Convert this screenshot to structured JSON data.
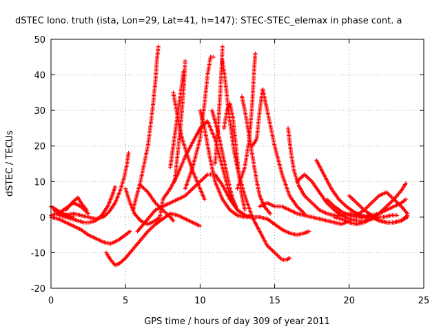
{
  "chart_data": {
    "type": "scatter",
    "title": "dSTEC Iono. truth (ista, Lon=29, Lat=41, h=147): STEC-STEC_elemax in phase cont. a",
    "xlabel": "GPS time / hours of day 309 of year 2011",
    "ylabel": "dSTEC  / TECUs",
    "xlim": [
      0,
      25
    ],
    "ylim": [
      -20,
      50
    ],
    "xticks": [
      0,
      5,
      10,
      15,
      20,
      25
    ],
    "yticks": [
      -20,
      -10,
      0,
      10,
      20,
      30,
      40,
      50
    ],
    "grid": true,
    "marker": "plus",
    "color": "#ff0000",
    "series": [
      {
        "x": [
          0.0,
          0.4,
          0.8,
          1.2,
          1.5
        ],
        "y": [
          3,
          2,
          1,
          0.3,
          0
        ]
      },
      {
        "x": [
          0.2,
          0.6,
          1.0,
          1.4,
          1.8,
          2.2,
          2.6,
          3.0,
          3.4,
          3.8,
          4.1,
          4.3
        ],
        "y": [
          2,
          0.5,
          0,
          -0.5,
          -1,
          -1.5,
          -1.5,
          -1,
          0.5,
          3,
          6,
          8.5
        ]
      },
      {
        "x": [
          0.0,
          0.5,
          1.0,
          1.5,
          2.0,
          2.5
        ],
        "y": [
          0.5,
          1,
          2.5,
          4,
          3,
          1
        ]
      },
      {
        "x": [
          0.0,
          0.5,
          1.0,
          1.5,
          2.0,
          2.5,
          3.0,
          3.5,
          4.0,
          4.5,
          5.0,
          5.3
        ],
        "y": [
          0,
          -0.5,
          -1.5,
          -2.5,
          -3.5,
          -5,
          -6,
          -7,
          -7.5,
          -6.5,
          -5,
          -4
        ]
      },
      {
        "x": [
          1.0,
          1.5,
          2.0,
          2.5,
          3.0,
          3.5,
          3.9,
          4.3,
          4.6,
          4.9,
          5.1,
          5.2
        ],
        "y": [
          0.5,
          1,
          0.5,
          0,
          -0.5,
          0,
          1.5,
          4,
          7,
          11,
          15,
          18
        ]
      },
      {
        "x": [
          1.0,
          1.4,
          1.8,
          2.1,
          2.4
        ],
        "y": [
          2,
          4,
          5.5,
          3.5,
          2
        ]
      },
      {
        "x": [
          3.7,
          4.0,
          4.3,
          4.6,
          5.0,
          5.5,
          6.0,
          6.5,
          7.0,
          7.5,
          8.0,
          8.5,
          9.0,
          9.5,
          10.0
        ],
        "y": [
          -10,
          -12,
          -13.5,
          -13,
          -11.5,
          -9,
          -6.5,
          -4,
          -2,
          -0.5,
          1,
          0.5,
          -0.5,
          -1.5,
          -2.5
        ]
      },
      {
        "x": [
          5.0,
          5.3,
          5.6,
          6.0,
          6.5,
          7.0,
          7.3,
          7.5,
          8.0,
          8.5,
          9.0,
          9.5,
          10.0,
          10.5,
          11.0,
          11.5,
          12.0,
          12.5,
          13.0,
          13.5,
          14.0
        ],
        "y": [
          8,
          4,
          1,
          -1,
          -2,
          -1,
          0,
          5,
          8,
          12,
          17,
          21,
          25,
          27,
          22,
          14,
          6,
          2,
          0.5,
          0,
          0
        ]
      },
      {
        "x": [
          5.5,
          6.0,
          6.5,
          6.8,
          7.0,
          7.1,
          7.2
        ],
        "y": [
          2,
          10,
          20,
          30,
          38,
          44,
          48
        ]
      },
      {
        "x": [
          5.8,
          6.2,
          6.6,
          7.0,
          7.5,
          8.0,
          8.5,
          9.0,
          9.5,
          10.0,
          10.5,
          11.0,
          11.5,
          12.0,
          12.5,
          13.0,
          13.5,
          14.0
        ],
        "y": [
          -4,
          -2,
          0,
          2,
          3,
          4,
          5,
          6,
          8,
          10,
          12,
          12,
          9,
          5,
          2,
          0.5,
          0,
          0
        ]
      },
      {
        "x": [
          6.0,
          6.5,
          7.0,
          7.5,
          8.0,
          8.2
        ],
        "y": [
          9,
          7,
          4,
          2,
          0,
          -1
        ]
      },
      {
        "x": [
          8.0,
          8.2,
          8.4,
          8.6,
          8.8,
          8.9
        ],
        "y": [
          14,
          20,
          26,
          32,
          38,
          41
        ]
      },
      {
        "x": [
          8.3,
          8.5,
          8.7,
          8.9,
          9.0
        ],
        "y": [
          10,
          18,
          26,
          36,
          44
        ]
      },
      {
        "x": [
          8.2,
          8.5,
          8.8,
          9.1,
          9.5,
          10.0,
          10.3
        ],
        "y": [
          35,
          28,
          22,
          18,
          13,
          8,
          5
        ]
      },
      {
        "x": [
          9.0,
          9.5,
          10.0,
          10.3,
          10.5,
          10.7,
          10.9
        ],
        "y": [
          8,
          14,
          22,
          32,
          40,
          45,
          45
        ]
      },
      {
        "x": [
          10.0,
          10.3,
          10.6,
          11.0,
          11.5,
          12.0,
          12.5,
          13.0,
          13.5,
          14.0,
          14.5,
          15.0,
          15.5,
          16.0,
          16.5,
          17.0,
          17.3
        ],
        "y": [
          30,
          25,
          18,
          10,
          5,
          2,
          0.5,
          0,
          0,
          0,
          -0.5,
          -2,
          -3.5,
          -4.5,
          -5,
          -4.5,
          -4
        ]
      },
      {
        "x": [
          10.8,
          11.0,
          11.2,
          11.4,
          11.6,
          11.8,
          12.0,
          12.2,
          12.4
        ],
        "y": [
          30,
          27,
          24,
          20,
          16,
          12,
          8,
          5,
          3
        ]
      },
      {
        "x": [
          11.0,
          11.2,
          11.35,
          11.45,
          11.5
        ],
        "y": [
          15,
          25,
          35,
          43,
          48
        ]
      },
      {
        "x": [
          11.5,
          11.7,
          11.9,
          12.1,
          12.3,
          12.6,
          13.0,
          13.5,
          14.0,
          14.5,
          15.0,
          15.5,
          15.8,
          16.0
        ],
        "y": [
          44,
          38,
          30,
          24,
          18,
          12,
          6,
          0,
          -4,
          -8,
          -10,
          -12,
          -12,
          -11.5
        ]
      },
      {
        "x": [
          11.6,
          11.8,
          12.0,
          12.2,
          12.4,
          12.6,
          12.8,
          13.0
        ],
        "y": [
          25,
          30,
          32,
          28,
          20,
          12,
          6,
          2
        ]
      },
      {
        "x": [
          12.8,
          13.0,
          13.2,
          13.4,
          13.6,
          13.8,
          14.0,
          14.3,
          14.7
        ],
        "y": [
          34,
          30,
          25,
          20,
          15,
          10,
          6,
          3,
          1
        ]
      },
      {
        "x": [
          12.5,
          13.0,
          13.3,
          13.5,
          13.6,
          13.7
        ],
        "y": [
          8,
          14,
          22,
          32,
          40,
          46
        ]
      },
      {
        "x": [
          13.5,
          13.8,
          14.0,
          14.2,
          14.5,
          15.0,
          15.5,
          16.0,
          16.5,
          17.0
        ],
        "y": [
          20,
          22,
          30,
          36,
          30,
          20,
          12,
          6,
          3,
          1
        ]
      },
      {
        "x": [
          14.0,
          14.5,
          15.0,
          15.5,
          16.0,
          16.5,
          17.0,
          17.5,
          18.0,
          18.5,
          19.0,
          19.5,
          20.0
        ],
        "y": [
          3,
          4,
          3,
          3,
          2,
          1,
          0.5,
          0,
          -0.5,
          -1,
          -1.5,
          -2,
          -1
        ]
      },
      {
        "x": [
          15.9,
          16.1,
          16.3,
          16.6,
          17.0,
          17.5,
          18.0,
          18.5,
          19.0,
          19.5,
          20.0,
          20.5,
          21.0
        ],
        "y": [
          25,
          18,
          13,
          9,
          6,
          4,
          2,
          1,
          0.5,
          0.5,
          1,
          0.5,
          0
        ]
      },
      {
        "x": [
          16.5,
          17.0,
          17.5,
          18.0,
          18.5,
          19.0,
          19.5,
          20.0,
          20.5,
          21.0,
          21.5,
          22.0
        ],
        "y": [
          10,
          12,
          10,
          7,
          4,
          2,
          0.5,
          -0.5,
          -1,
          -1,
          -0.5,
          0
        ]
      },
      {
        "x": [
          17.8,
          18.3,
          18.8,
          19.3,
          19.8,
          20.3,
          20.8,
          21.3,
          21.8,
          22.3,
          22.8,
          23.2
        ],
        "y": [
          16,
          12,
          8,
          5,
          3,
          1.5,
          0.5,
          0,
          0,
          0,
          0.5,
          0.5
        ]
      },
      {
        "x": [
          18.5,
          19.0,
          19.5,
          20.0,
          20.5,
          21.0,
          21.5,
          22.0,
          22.5,
          23.0,
          23.5,
          23.8
        ],
        "y": [
          5,
          3,
          1.5,
          0.5,
          0,
          0,
          0.5,
          1,
          2,
          3,
          4,
          5
        ]
      },
      {
        "x": [
          19.0,
          19.5,
          20.0,
          20.5,
          21.0,
          21.5,
          22.0,
          22.5,
          23.0,
          23.5,
          23.8
        ],
        "y": [
          0,
          -0.5,
          -1.5,
          -2,
          -1.5,
          -0.5,
          1,
          3,
          5,
          7.5,
          9.5
        ]
      },
      {
        "x": [
          20.0,
          20.5,
          21.0,
          21.5,
          22.0,
          22.5,
          23.0,
          23.5,
          23.9
        ],
        "y": [
          6,
          4,
          2,
          0.5,
          -1,
          -1.5,
          -1.5,
          -1,
          0
        ]
      },
      {
        "x": [
          20.5,
          21.0,
          21.5,
          22.0,
          22.5,
          23.0,
          23.5,
          23.9
        ],
        "y": [
          0.5,
          2,
          4,
          6,
          7,
          5,
          3,
          1
        ]
      },
      {
        "x": [
          21.5,
          22.0,
          22.5,
          23.0,
          23.5,
          23.9
        ],
        "y": [
          0,
          -1,
          -1.5,
          -1.5,
          -1,
          0.5
        ]
      }
    ]
  }
}
